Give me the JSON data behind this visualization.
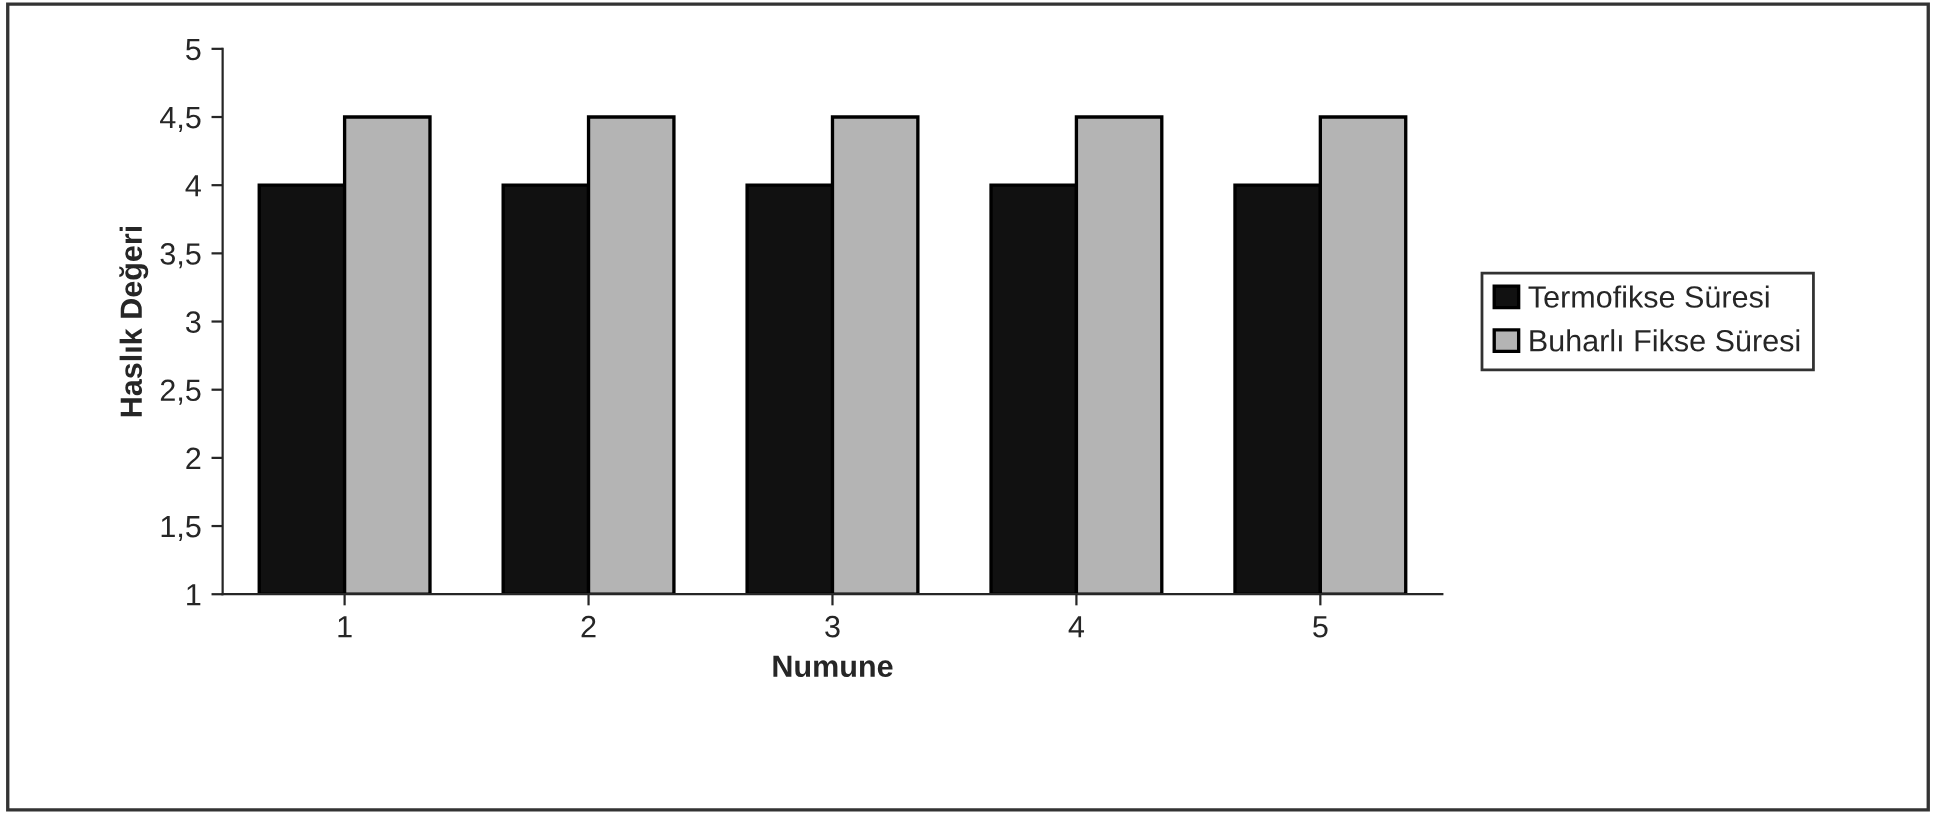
{
  "chart_data": {
    "type": "bar",
    "xlabel": "Numune",
    "ylabel": "Haslık Değeri",
    "categories": [
      "1",
      "2",
      "3",
      "4",
      "5"
    ],
    "series": [
      {
        "name": "Termofikse Süresi",
        "color": "#111111",
        "values": [
          4,
          4,
          4,
          4,
          4
        ]
      },
      {
        "name": "Buharlı Fikse Süresi",
        "color": "#b4b4b4",
        "values": [
          4.5,
          4.5,
          4.5,
          4.5,
          4.5
        ]
      }
    ],
    "ylim": [
      1,
      5
    ],
    "yticks": [
      1,
      {
        "value": 1.5,
        "label": "1,5"
      },
      2,
      {
        "value": 2.5,
        "label": "2,5"
      },
      3,
      {
        "value": 3.5,
        "label": "3,5"
      },
      4,
      {
        "value": 4.5,
        "label": "4,5"
      },
      5
    ],
    "grid": false,
    "legend": "right"
  }
}
